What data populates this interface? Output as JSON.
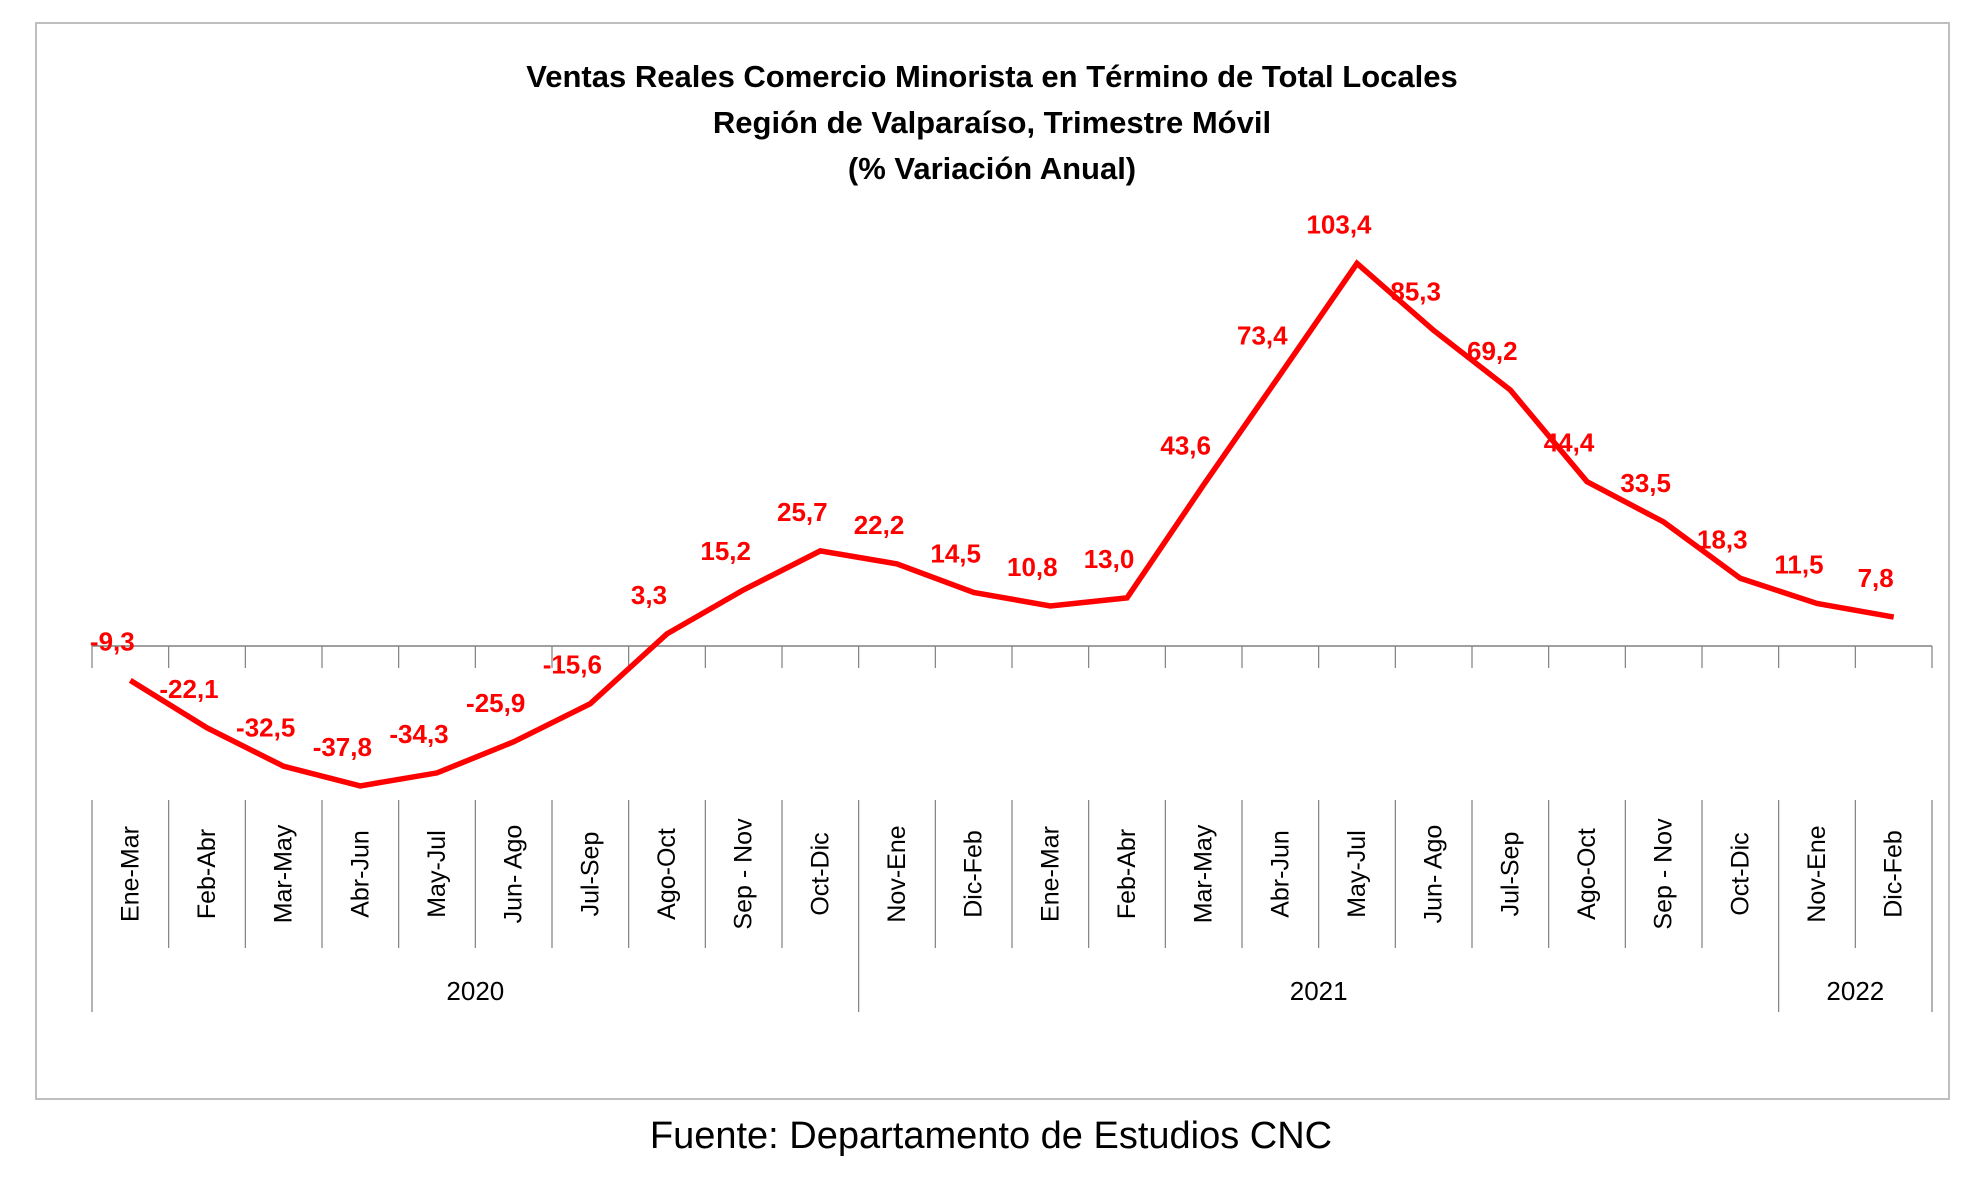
{
  "chart_data": {
    "type": "line",
    "title": [
      "Ventas Reales Comercio Minorista  en Término de Total Locales",
      "Región de Valparaíso, Trimestre Móvil",
      "(% Variación Anual)"
    ],
    "categories": [
      "Ene-Mar",
      "Feb-Abr",
      "Mar-May",
      "Abr-Jun",
      "May-Jul",
      "Jun- Ago",
      "Jul-Sep",
      "Ago-Oct",
      "Sep - Nov",
      "Oct-Dic",
      "Nov-Ene",
      "Dic-Feb",
      "Ene-Mar",
      "Feb-Abr",
      "Mar-May",
      "Abr-Jun",
      "May-Jul",
      "Jun- Ago",
      "Jul-Sep",
      "Ago-Oct",
      "Sep - Nov",
      "Oct-Dic",
      "Nov-Ene",
      "Dic-Feb"
    ],
    "year_groups": [
      {
        "label": "2020",
        "count": 10
      },
      {
        "label": "2021",
        "count": 12
      },
      {
        "label": "2022",
        "count": 2
      }
    ],
    "series": [
      {
        "values": [
          -9.3,
          -22.1,
          -32.5,
          -37.8,
          -34.3,
          -25.9,
          -15.6,
          3.3,
          15.2,
          25.7,
          22.2,
          14.5,
          10.8,
          13.0,
          43.6,
          73.4,
          103.4,
          85.3,
          69.2,
          44.4,
          33.5,
          18.3,
          11.5,
          7.8
        ],
        "value_labels": [
          "-9,3",
          "-22,1",
          "-32,5",
          "-37,8",
          "-34,3",
          "-25,9",
          "-15,6",
          "3,3",
          "15,2",
          "25,7",
          "22,2",
          "14,5",
          "10,8",
          "13,0",
          "43,6",
          "73,4",
          "103,4",
          "85,3",
          "69,2",
          "44,4",
          "33,5",
          "18,3",
          "11,5",
          "7,8"
        ],
        "color": "#ff0000"
      }
    ],
    "ylim": [
      -45,
      115
    ],
    "grid": false,
    "legend": "none"
  },
  "source_note": "Fuente: Departamento de Estudios CNC"
}
